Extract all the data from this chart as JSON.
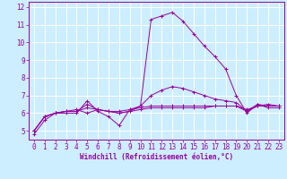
{
  "xlabel": "Windchill (Refroidissement éolien,°C)",
  "x": [
    0,
    1,
    2,
    3,
    4,
    5,
    6,
    7,
    8,
    9,
    10,
    11,
    12,
    13,
    14,
    15,
    16,
    17,
    18,
    19,
    20,
    21,
    22,
    23
  ],
  "line1": [
    4.8,
    5.6,
    6.0,
    6.0,
    6.0,
    6.7,
    6.1,
    5.8,
    5.3,
    6.2,
    6.4,
    11.3,
    11.5,
    11.7,
    11.2,
    10.5,
    9.8,
    9.2,
    8.5,
    7.0,
    6.0,
    6.5,
    6.3,
    6.3
  ],
  "line2": [
    5.0,
    5.8,
    6.0,
    6.1,
    6.1,
    6.3,
    6.2,
    6.1,
    6.0,
    6.1,
    6.2,
    6.3,
    6.3,
    6.3,
    6.3,
    6.3,
    6.3,
    6.4,
    6.4,
    6.4,
    6.1,
    6.4,
    6.4,
    6.4
  ],
  "line3": [
    5.0,
    5.8,
    6.0,
    6.1,
    6.1,
    6.5,
    6.2,
    6.1,
    6.0,
    6.1,
    6.4,
    7.0,
    7.3,
    7.5,
    7.4,
    7.2,
    7.0,
    6.8,
    6.7,
    6.6,
    6.1,
    6.5,
    6.4,
    6.4
  ],
  "line4": [
    5.0,
    5.8,
    6.0,
    6.1,
    6.2,
    6.0,
    6.2,
    6.1,
    6.1,
    6.2,
    6.3,
    6.4,
    6.4,
    6.4,
    6.4,
    6.4,
    6.4,
    6.4,
    6.4,
    6.4,
    6.2,
    6.4,
    6.5,
    6.4
  ],
  "line_color": "#990099",
  "bg_color": "#cceeff",
  "grid_color": "#ffffff",
  "ylim": [
    4.5,
    12.3
  ],
  "xlim": [
    -0.5,
    23.5
  ],
  "yticks": [
    5,
    6,
    7,
    8,
    9,
    10,
    11,
    12
  ],
  "xticks": [
    0,
    1,
    2,
    3,
    4,
    5,
    6,
    7,
    8,
    9,
    10,
    11,
    12,
    13,
    14,
    15,
    16,
    17,
    18,
    19,
    20,
    21,
    22,
    23
  ],
  "tick_fontsize": 5.5,
  "xlabel_fontsize": 5.5
}
